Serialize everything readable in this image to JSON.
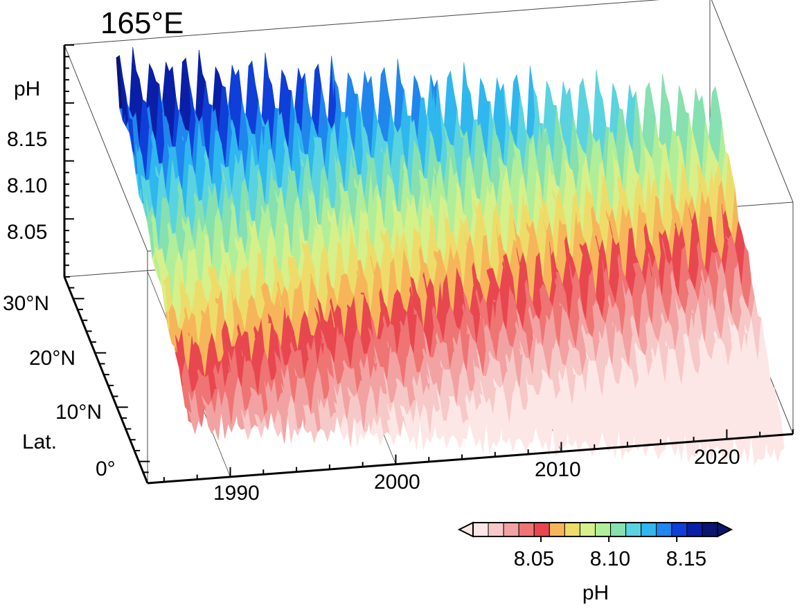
{
  "chart_data": {
    "type": "surface3d",
    "title": "165°E",
    "zlabel": "pH",
    "ylabel": "Lat.",
    "xlabel": "",
    "x_ticks": [
      "1990",
      "2000",
      "2010",
      "2020"
    ],
    "x_range": [
      1985,
      2024
    ],
    "y_ticks": [
      "0°",
      "10°N",
      "20°N",
      "30°N"
    ],
    "y_range": [
      -4,
      34
    ],
    "z_ticks": [
      "8.05",
      "8.10",
      "8.15"
    ],
    "z_range": [
      8.0,
      8.2
    ],
    "data_extent": {
      "year": [
        1988,
        2024
      ],
      "lat": [
        0,
        33
      ]
    },
    "trend_ph_per_year": -0.0018,
    "seasonal_amplitude": 0.045,
    "approx_ph_by_lat_1988": [
      {
        "lat": 0,
        "ph": 8.03
      },
      {
        "lat": 10,
        "ph": 8.07
      },
      {
        "lat": 20,
        "ph": 8.11
      },
      {
        "lat": 30,
        "ph": 8.16
      }
    ],
    "colorbar": {
      "label": "pH",
      "ticks": [
        "8.05",
        "8.10",
        "8.15"
      ],
      "range": [
        8.0,
        8.18
      ],
      "extend": "both",
      "colors": [
        "#fde6e6",
        "#f7c8c8",
        "#f2a2a2",
        "#ef7474",
        "#e8474f",
        "#f7b55a",
        "#eedc6a",
        "#d6f08a",
        "#b0ee9a",
        "#86e0b0",
        "#5ad3e0",
        "#2fb7ee",
        "#1f86ee",
        "#0f3fd8",
        "#0a1fa8",
        "#0b1470"
      ]
    }
  }
}
